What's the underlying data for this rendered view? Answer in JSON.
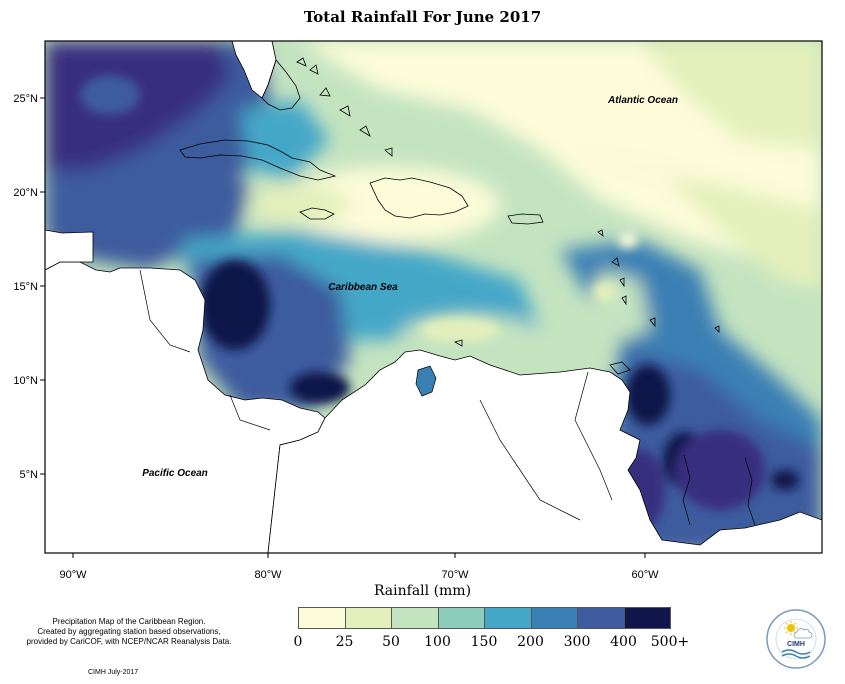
{
  "title": "Total Rainfall For June 2017",
  "x_axis_title": "Rainfall (mm)",
  "lon_ticks": [
    "90°W",
    "80°W",
    "70°W",
    "60°W"
  ],
  "lat_ticks": [
    "25°N",
    "20°N",
    "15°N",
    "10°N",
    "5°N"
  ],
  "ocean_labels": {
    "atlantic": "Atlantic Ocean",
    "caribbean": "Caribbean Sea",
    "pacific": "Pacific Ocean"
  },
  "legend": {
    "labels": [
      "0",
      "25",
      "50",
      "100",
      "150",
      "200",
      "300",
      "400",
      "500+"
    ],
    "colors": [
      "#fcfcd8",
      "#e4f0bc",
      "#c4e4c0",
      "#8ccdbc",
      "#45a7c8",
      "#3a80b4",
      "#3e5c9e",
      "#372e7e",
      "#10154a"
    ]
  },
  "description": {
    "line1": "Precipitation Map of the Caribbean Region.",
    "line2": "Created by aggregating station based observations,",
    "line3": "provided by CariCOF, with NCEP/NCAR Reanalysis Data."
  },
  "credit": "CIMH July-2017",
  "logo": {
    "acronym": "CIMH",
    "icon": "cimh-sun-cloud-logo-icon"
  }
}
